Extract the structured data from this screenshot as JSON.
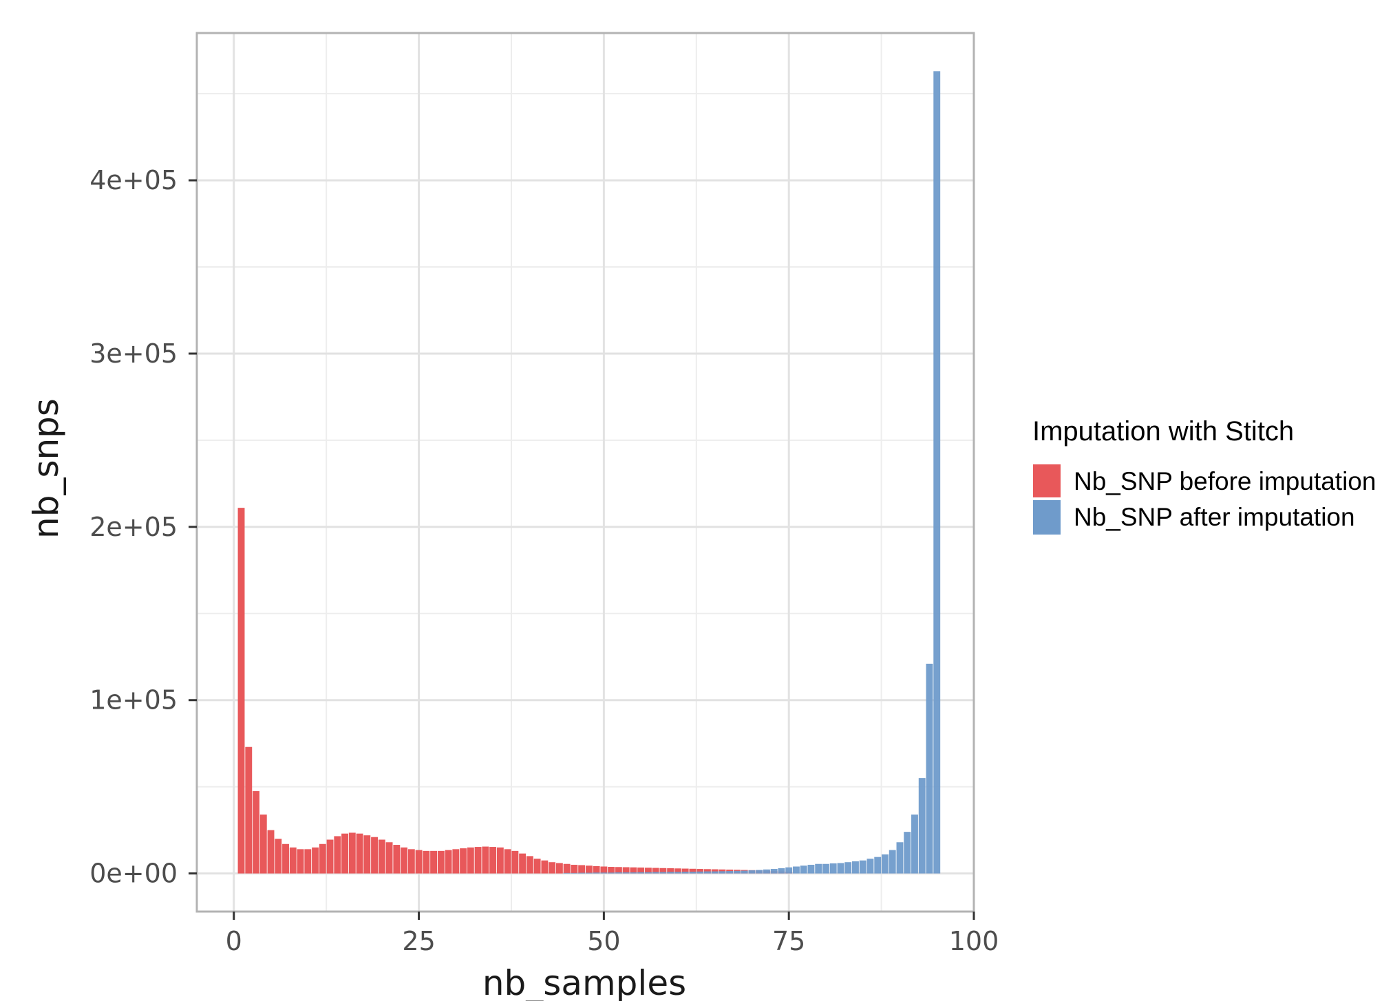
{
  "chart_data": {
    "type": "bar",
    "xlabel": "nb_samples",
    "ylabel": "nb_snps",
    "xlim": [
      -5,
      100
    ],
    "ylim": [
      -22000,
      485000
    ],
    "x_ticks": [
      0,
      25,
      50,
      75,
      100
    ],
    "x_tick_labels": [
      "0",
      "25",
      "50",
      "75",
      "100"
    ],
    "y_ticks": [
      0,
      100000,
      200000,
      300000,
      400000
    ],
    "y_tick_labels": [
      "0e+00",
      "1e+05",
      "2e+05",
      "3e+05",
      "4e+05"
    ],
    "grid": true,
    "legend": {
      "title": "Imputation with Stitch",
      "position": "right"
    },
    "series": [
      {
        "name": "Nb_SNP before imputation",
        "color": "#e8585a",
        "x": [
          1,
          2,
          3,
          4,
          5,
          6,
          7,
          8,
          9,
          10,
          11,
          12,
          13,
          14,
          15,
          16,
          17,
          18,
          19,
          20,
          21,
          22,
          23,
          24,
          25,
          26,
          27,
          28,
          29,
          30,
          31,
          32,
          33,
          34,
          35,
          36,
          37,
          38,
          39,
          40,
          41,
          42,
          43,
          44,
          45,
          46,
          47,
          48,
          49,
          50,
          51,
          52,
          53,
          54,
          55,
          56,
          57,
          58,
          59,
          60,
          61,
          62,
          63,
          64,
          65,
          66,
          67,
          68,
          69,
          70,
          71,
          72,
          73,
          74,
          75
        ],
        "values": [
          211000,
          73000,
          47500,
          34000,
          25000,
          20000,
          17000,
          15000,
          14000,
          14000,
          15000,
          17000,
          19500,
          21500,
          23000,
          23500,
          23000,
          22000,
          21000,
          19500,
          18000,
          16500,
          15000,
          14000,
          13500,
          13000,
          13000,
          13000,
          13500,
          14000,
          14500,
          15000,
          15300,
          15500,
          15300,
          15000,
          14000,
          13000,
          11500,
          10000,
          8500,
          7500,
          6500,
          6000,
          5500,
          5000,
          4800,
          4500,
          4200,
          4000,
          3800,
          3700,
          3600,
          3500,
          3400,
          3300,
          3200,
          3100,
          3000,
          2900,
          2800,
          2700,
          2600,
          2500,
          2400,
          2300,
          2200,
          2100,
          2000,
          1900,
          1800,
          1600,
          1400,
          1200,
          1000
        ]
      },
      {
        "name": "Nb_SNP after imputation",
        "color": "#6f9bcb",
        "x": [
          45,
          46,
          47,
          48,
          49,
          50,
          51,
          52,
          53,
          54,
          55,
          56,
          57,
          58,
          59,
          60,
          61,
          62,
          63,
          64,
          65,
          66,
          67,
          68,
          69,
          70,
          71,
          72,
          73,
          74,
          75,
          76,
          77,
          78,
          79,
          80,
          81,
          82,
          83,
          84,
          85,
          86,
          87,
          88,
          89,
          90,
          91,
          92,
          93,
          94,
          95
        ],
        "values": [
          300,
          300,
          400,
          400,
          500,
          500,
          500,
          600,
          600,
          600,
          700,
          700,
          800,
          800,
          900,
          900,
          1000,
          1000,
          1100,
          1200,
          1200,
          1300,
          1400,
          1500,
          1600,
          1800,
          2000,
          2300,
          2600,
          3000,
          3500,
          4000,
          4500,
          5000,
          5500,
          5500,
          5800,
          6000,
          6500,
          7000,
          7500,
          8500,
          9500,
          11000,
          13500,
          18000,
          24000,
          34000,
          55000,
          121000,
          463000
        ]
      }
    ]
  }
}
